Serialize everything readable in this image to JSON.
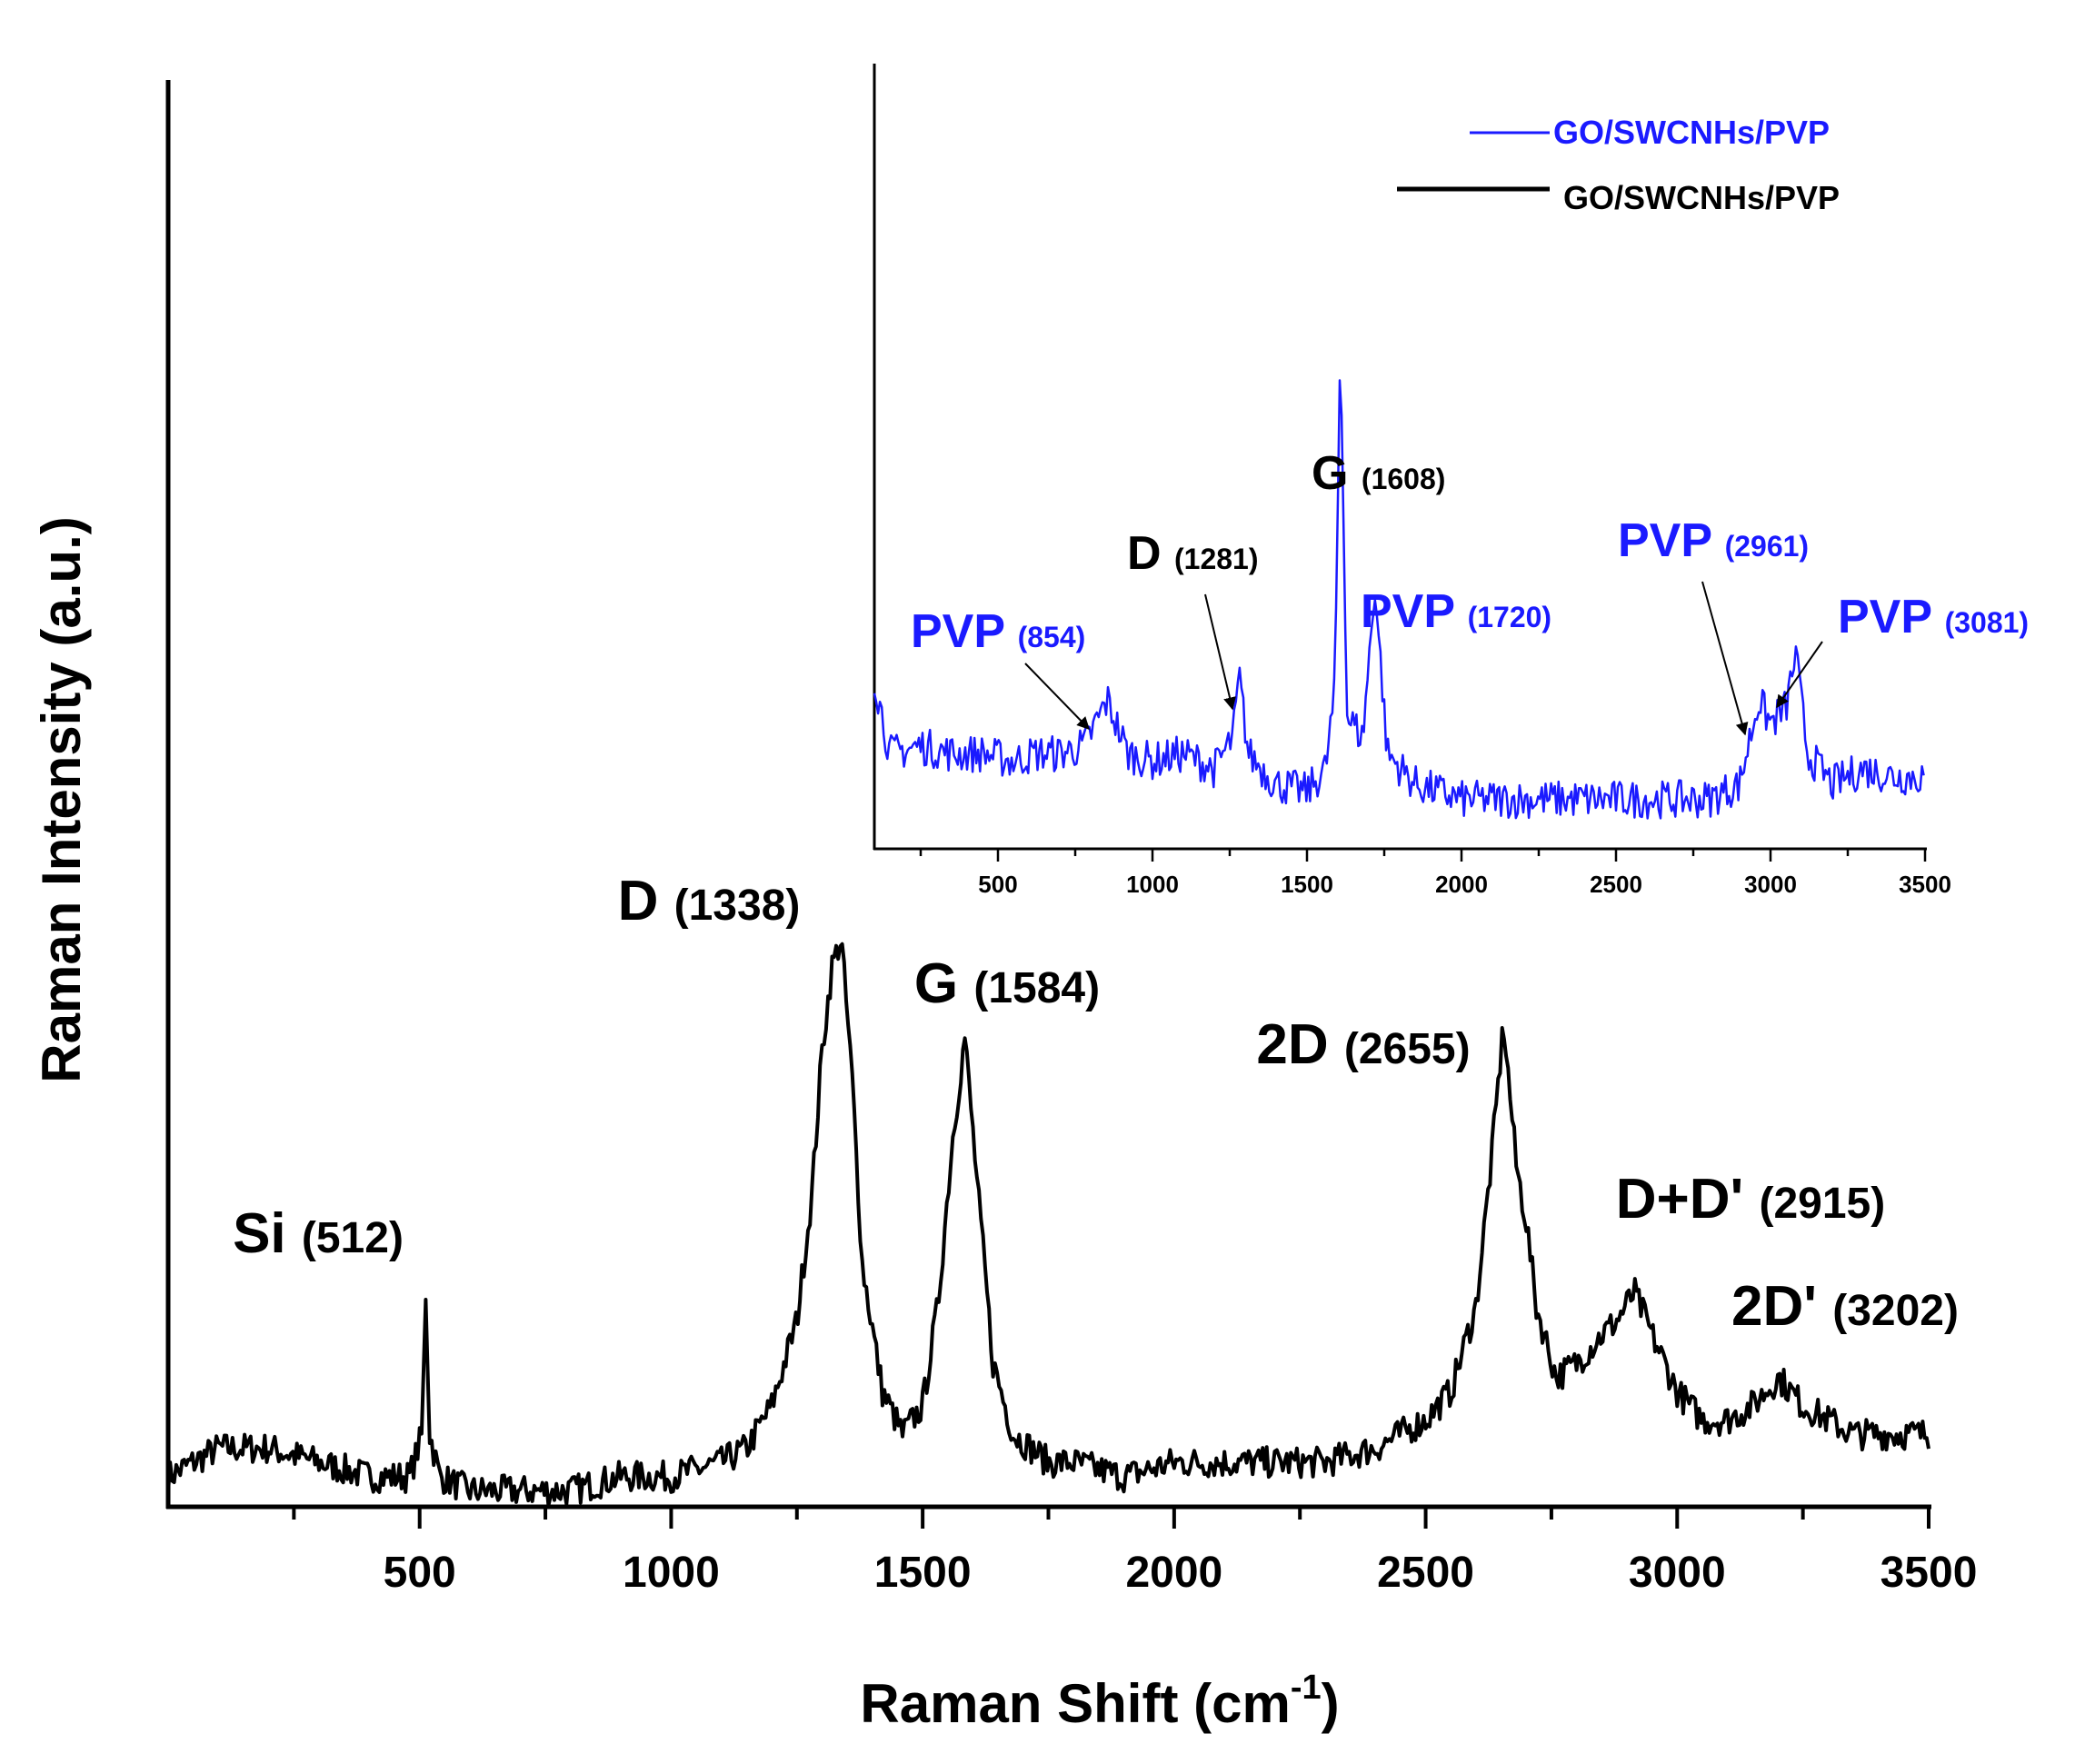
{
  "chart_data": [
    {
      "type": "line",
      "title": "",
      "xlabel": "Raman Shift (cm",
      "xlabel_sup": "-1",
      "xlabel_close": ")",
      "ylabel": "Raman Intensity (a.u.)",
      "xlim": [
        0,
        3500
      ],
      "ylim": [
        0,
        100
      ],
      "xticks": [
        500,
        1000,
        1500,
        2000,
        2500,
        3000,
        3500
      ],
      "y_ticks_shown": false,
      "color": "#000000",
      "series": [
        {
          "x": [
            0,
            100,
            200,
            300,
            400,
            480,
            505,
            512,
            520,
            540,
            600,
            700,
            800,
            900,
            1000,
            1100,
            1150,
            1200,
            1250,
            1280,
            1300,
            1320,
            1338,
            1360,
            1380,
            1420,
            1460,
            1500,
            1530,
            1560,
            1584,
            1610,
            1640,
            1680,
            1750,
            1800,
            1900,
            2000,
            2100,
            2200,
            2300,
            2400,
            2450,
            2500,
            2550,
            2600,
            2630,
            2655,
            2680,
            2700,
            2720,
            2760,
            2800,
            2850,
            2880,
            2915,
            2950,
            3000,
            3050,
            3100,
            3150,
            3202,
            3250,
            3300,
            3350,
            3400,
            3450,
            3500
          ],
          "y": [
            2,
            4,
            4,
            3,
            2,
            2,
            5,
            15,
            5,
            2,
            1,
            1,
            1,
            2,
            2,
            3,
            4,
            7,
            13,
            22,
            32,
            38,
            40,
            30,
            17,
            8,
            5,
            7,
            14,
            26,
            33,
            22,
            10,
            5,
            3,
            3,
            2,
            3,
            3,
            3,
            3,
            4,
            5,
            6,
            8,
            14,
            24,
            34,
            24,
            20,
            14,
            9,
            10,
            12,
            13,
            15,
            12,
            8,
            6,
            6,
            7,
            9,
            7,
            6,
            5,
            5,
            5,
            5
          ]
        }
      ],
      "annotations": [
        {
          "label": "Si",
          "value": "(512)",
          "x": 512
        },
        {
          "label": "D",
          "value": "(1338)",
          "x": 1338
        },
        {
          "label": "G",
          "value": "(1584)",
          "x": 1584
        },
        {
          "label": "2D",
          "value": "(2655)",
          "x": 2655
        },
        {
          "label": "D+D'",
          "value": "(2915)",
          "x": 2915
        },
        {
          "label": "2D'",
          "value": "(3202)",
          "x": 3202
        }
      ]
    },
    {
      "type": "line",
      "title": "",
      "xlim": [
        100,
        3500
      ],
      "ylim": [
        0,
        100
      ],
      "xticks": [
        500,
        1000,
        1500,
        2000,
        2500,
        3000,
        3500
      ],
      "y_ticks_shown": false,
      "legend": {
        "placement": "top-right",
        "entries": [
          {
            "name": "GO/SWCNHs/PVP",
            "color": "#1a1aff"
          },
          {
            "name": "GO/SWCNHs/PVP",
            "color": "#000000"
          }
        ]
      },
      "series": [
        {
          "name": "GO/SWCNHs/PVP",
          "color": "#1a1aff",
          "x": [
            100,
            150,
            250,
            350,
            450,
            550,
            620,
            700,
            780,
            854,
            920,
            1000,
            1100,
            1200,
            1260,
            1281,
            1310,
            1400,
            1500,
            1560,
            1590,
            1608,
            1630,
            1680,
            1720,
            1760,
            1850,
            2000,
            2200,
            2400,
            2600,
            2800,
            2900,
            2961,
            3000,
            3050,
            3081,
            3120,
            3200,
            3300,
            3400,
            3500
          ],
          "y": [
            22,
            12,
            13,
            12,
            12,
            11,
            12,
            12,
            13,
            19,
            12,
            11,
            12,
            10,
            14,
            22,
            12,
            8,
            7,
            10,
            20,
            66,
            17,
            14,
            34,
            12,
            8,
            6,
            6,
            6,
            6,
            6,
            8,
            19,
            16,
            18,
            25,
            12,
            8,
            10,
            9,
            9
          ]
        }
      ],
      "annotations": [
        {
          "label": "PVP",
          "value": "(854)",
          "x": 854,
          "color": "#1a1aff"
        },
        {
          "label": "D",
          "value": "(1281)",
          "x": 1281,
          "color": "#000000"
        },
        {
          "label": "G",
          "value": "(1608)",
          "x": 1608,
          "color": "#000000"
        },
        {
          "label": "PVP",
          "value": "(1720)",
          "x": 1720,
          "color": "#1a1aff"
        },
        {
          "label": "PVP",
          "value": "(2961)",
          "x": 2961,
          "color": "#1a1aff"
        },
        {
          "label": "PVP",
          "value": "(3081)",
          "x": 3081,
          "color": "#1a1aff"
        }
      ]
    }
  ]
}
